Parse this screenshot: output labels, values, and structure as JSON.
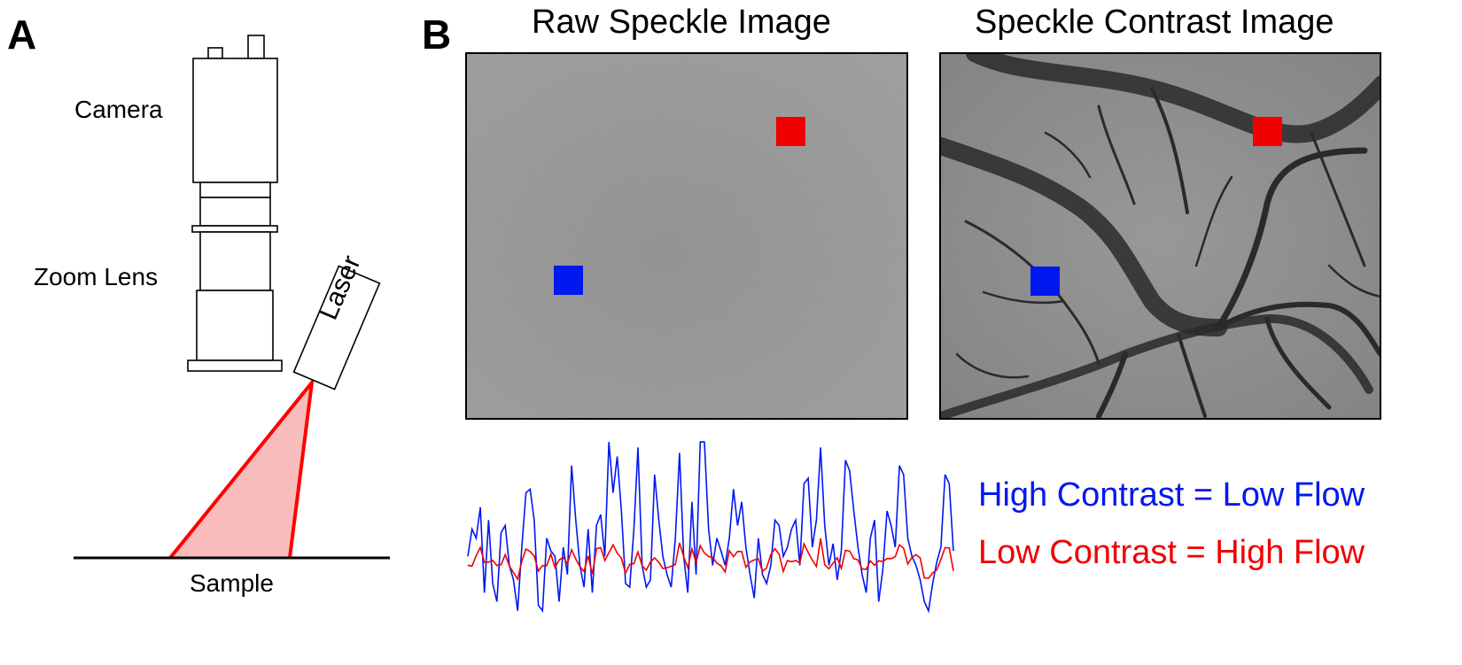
{
  "panel_a": {
    "letter": "A",
    "camera_label": "Camera",
    "zoom_lens_label": "Zoom Lens",
    "laser_label": "Laser",
    "sample_label": "Sample"
  },
  "panel_b": {
    "letter": "B",
    "raw_title": "Raw Speckle Image",
    "contrast_title": "Speckle Contrast Image"
  },
  "legend": {
    "high_contrast": "High Contrast = Low Flow",
    "low_contrast": "Low Contrast = High Flow"
  },
  "colors": {
    "laser_beam": "#ff0000",
    "laser_fill": "#f9bcbc",
    "high_contrast": "#0018f0",
    "low_contrast": "#f00000",
    "roi_blue": "#0018f0",
    "roi_red": "#f00000",
    "raw_image_gray": "#8a8a8a",
    "contrast_image_gray": "#8c8c8c"
  },
  "traces": {
    "blue": [
      0.35,
      0.5,
      0.45,
      0.62,
      0.15,
      0.55,
      0.2,
      0.1,
      0.48,
      0.52,
      0.3,
      0.22,
      0.05,
      0.4,
      0.7,
      0.72,
      0.55,
      0.08,
      0.05,
      0.45,
      0.38,
      0.35,
      0.1,
      0.4,
      0.25,
      0.85,
      0.55,
      0.3,
      0.18,
      0.5,
      0.15,
      0.52,
      0.58,
      0.35,
      0.98,
      0.7,
      0.9,
      0.6,
      0.2,
      0.18,
      0.5,
      0.95,
      0.3,
      0.18,
      0.22,
      0.8,
      0.55,
      0.35,
      0.25,
      0.18,
      0.45,
      0.92,
      0.35,
      0.15,
      0.65,
      0.25,
      0.98,
      0.98,
      0.5,
      0.3,
      0.45,
      0.38,
      0.3,
      0.45,
      0.72,
      0.52,
      0.65,
      0.4,
      0.25,
      0.12,
      0.45,
      0.25,
      0.2,
      0.3,
      0.55,
      0.52,
      0.35,
      0.4,
      0.5,
      0.55,
      0.3,
      0.75,
      0.78,
      0.4,
      0.55,
      0.95,
      0.52,
      0.3,
      0.42,
      0.22,
      0.38,
      0.88,
      0.82,
      0.6,
      0.4,
      0.25,
      0.15,
      0.45,
      0.55,
      0.1,
      0.28,
      0.6,
      0.52,
      0.4,
      0.85,
      0.8,
      0.45,
      0.35,
      0.3,
      0.22,
      0.1,
      0.05,
      0.2,
      0.32,
      0.4,
      0.8,
      0.75,
      0.38
    ]
  }
}
